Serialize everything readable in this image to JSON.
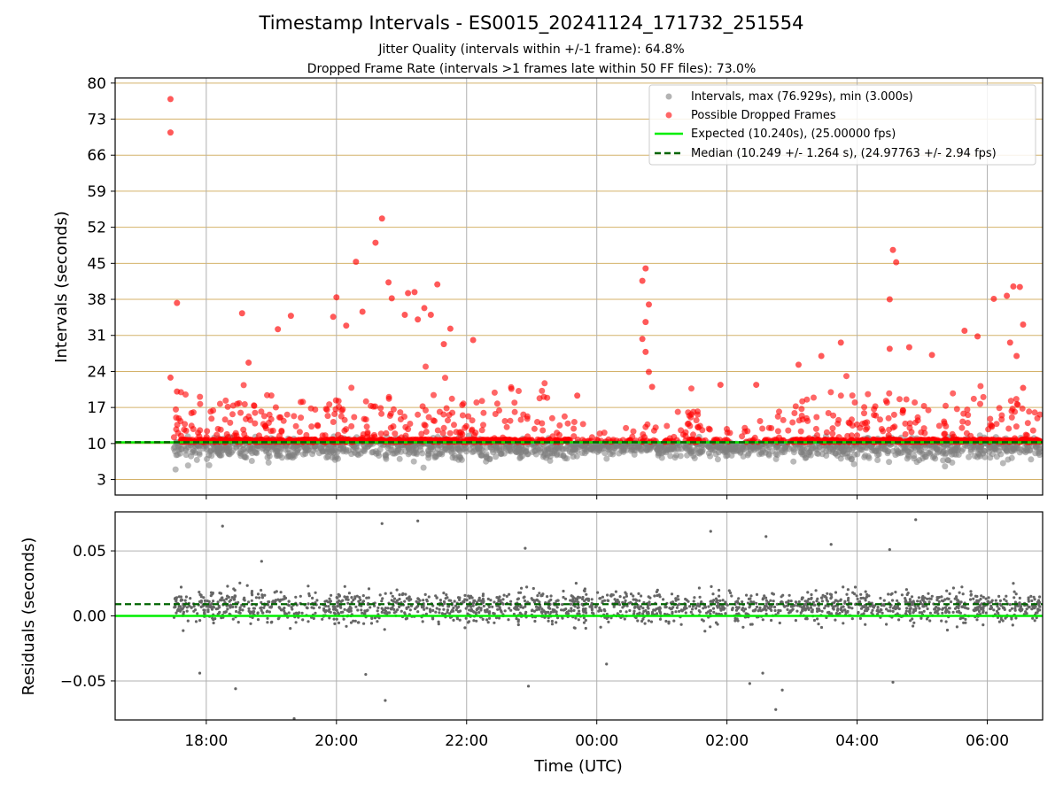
{
  "header": {
    "title": "Timestamp Intervals - ES0015_20241124_171732_251554",
    "subtitle1": "Jitter Quality (intervals within +/-1 frame): 64.8%",
    "subtitle2": "Dropped Frame Rate (intervals >1 frames late within 50 FF files): 73.0%"
  },
  "colors": {
    "intervals": "#808080",
    "dropped": "#ff0000",
    "expected": "#00ee00",
    "median": "#006400",
    "hgrid": "#d4b26a",
    "vgrid": "#b0b0b0"
  },
  "chart_data": [
    {
      "type": "scatter",
      "xlabel": "",
      "ylabel": "Intervals (seconds)",
      "x_ticks": [
        "18:00",
        "20:00",
        "22:00",
        "00:00",
        "02:00",
        "04:00",
        "06:00"
      ],
      "x_range_hours": [
        -1.4,
        12.85
      ],
      "x_start_hours": -0.7,
      "ylim": [
        0,
        81
      ],
      "y_ticks": [
        3,
        10,
        17,
        24,
        31,
        38,
        45,
        52,
        59,
        66,
        73,
        80
      ],
      "grid": "horizontal lines at y ticks, vertical lines at x ticks",
      "legend_position": "top-right",
      "legend": [
        "Intervals, max (76.929s), min (3.000s)",
        "Possible Dropped Frames",
        "Expected (10.240s), (25.00000 fps)",
        "Median (10.249 +/- 1.264 s), (24.97763 +/- 2.94 fps)"
      ],
      "max_interval": 76.929,
      "min_interval": 3.0,
      "expected": 10.24,
      "median": 10.249,
      "dropped_points": [
        {
          "x": -0.55,
          "y": 76.9
        },
        {
          "x": -0.55,
          "y": 70.4
        },
        {
          "x": -0.45,
          "y": 37.3
        },
        {
          "x": -0.55,
          "y": 22.8
        },
        {
          "x": -0.45,
          "y": 20.1
        },
        {
          "x": 0.55,
          "y": 35.3
        },
        {
          "x": 0.65,
          "y": 25.7
        },
        {
          "x": 1.1,
          "y": 32.2
        },
        {
          "x": 1.3,
          "y": 34.8
        },
        {
          "x": 1.95,
          "y": 34.6
        },
        {
          "x": 2.0,
          "y": 38.4
        },
        {
          "x": 2.15,
          "y": 32.9
        },
        {
          "x": 2.3,
          "y": 45.3
        },
        {
          "x": 2.4,
          "y": 35.6
        },
        {
          "x": 2.6,
          "y": 49.0
        },
        {
          "x": 2.7,
          "y": 53.7
        },
        {
          "x": 2.8,
          "y": 41.3
        },
        {
          "x": 2.85,
          "y": 38.2
        },
        {
          "x": 3.05,
          "y": 35.0
        },
        {
          "x": 3.1,
          "y": 39.2
        },
        {
          "x": 3.2,
          "y": 39.4
        },
        {
          "x": 3.25,
          "y": 34.1
        },
        {
          "x": 3.35,
          "y": 36.3
        },
        {
          "x": 3.45,
          "y": 35.0
        },
        {
          "x": 3.55,
          "y": 40.9
        },
        {
          "x": 3.65,
          "y": 29.3
        },
        {
          "x": 3.75,
          "y": 32.3
        },
        {
          "x": 4.1,
          "y": 30.1
        },
        {
          "x": 5.7,
          "y": 19.3
        },
        {
          "x": 6.7,
          "y": 41.6
        },
        {
          "x": 6.75,
          "y": 44.0
        },
        {
          "x": 6.8,
          "y": 37.0
        },
        {
          "x": 6.75,
          "y": 33.6
        },
        {
          "x": 6.7,
          "y": 30.3
        },
        {
          "x": 6.75,
          "y": 27.8
        },
        {
          "x": 6.8,
          "y": 23.9
        },
        {
          "x": 6.85,
          "y": 21.0
        },
        {
          "x": 7.9,
          "y": 21.4
        },
        {
          "x": 8.45,
          "y": 21.4
        },
        {
          "x": 9.1,
          "y": 25.3
        },
        {
          "x": 9.45,
          "y": 27.0
        },
        {
          "x": 9.75,
          "y": 29.6
        },
        {
          "x": 10.5,
          "y": 28.4
        },
        {
          "x": 10.55,
          "y": 47.6
        },
        {
          "x": 10.6,
          "y": 45.2
        },
        {
          "x": 10.5,
          "y": 38.0
        },
        {
          "x": 10.8,
          "y": 28.7
        },
        {
          "x": 11.15,
          "y": 27.2
        },
        {
          "x": 11.65,
          "y": 31.9
        },
        {
          "x": 11.85,
          "y": 30.8
        },
        {
          "x": 12.1,
          "y": 38.1
        },
        {
          "x": 12.3,
          "y": 38.7
        },
        {
          "x": 12.4,
          "y": 40.5
        },
        {
          "x": 12.5,
          "y": 40.4
        },
        {
          "x": 12.55,
          "y": 33.1
        },
        {
          "x": 12.35,
          "y": 29.6
        },
        {
          "x": 12.45,
          "y": 27.0
        },
        {
          "x": 12.55,
          "y": 20.8
        }
      ]
    },
    {
      "type": "scatter",
      "xlabel": "Time (UTC)",
      "ylabel": "Residuals (seconds)",
      "x_ticks": [
        "18:00",
        "20:00",
        "22:00",
        "00:00",
        "02:00",
        "04:00",
        "06:00"
      ],
      "y_ticks": [
        "0.05",
        "0.00",
        "−0.05"
      ],
      "y_tick_values": [
        0.05,
        0.0,
        -0.05
      ],
      "ylim": [
        -0.08,
        0.08
      ],
      "grid": "horizontal lines at y ticks, vertical lines at x ticks",
      "expected_residual": 0.0,
      "median_residual": 0.009,
      "outlier_points": [
        {
          "x": 0.25,
          "y": 0.069
        },
        {
          "x": 0.85,
          "y": 0.042
        },
        {
          "x": 2.7,
          "y": 0.071
        },
        {
          "x": 3.25,
          "y": 0.073
        },
        {
          "x": 4.9,
          "y": 0.052
        },
        {
          "x": 7.75,
          "y": 0.065
        },
        {
          "x": 8.6,
          "y": 0.061
        },
        {
          "x": 9.6,
          "y": 0.055
        },
        {
          "x": 10.5,
          "y": 0.051
        },
        {
          "x": 10.9,
          "y": 0.074
        },
        {
          "x": 12.4,
          "y": 0.025
        },
        {
          "x": -0.1,
          "y": -0.044
        },
        {
          "x": 0.45,
          "y": -0.056
        },
        {
          "x": 1.35,
          "y": -0.079
        },
        {
          "x": 2.45,
          "y": -0.045
        },
        {
          "x": 2.75,
          "y": -0.065
        },
        {
          "x": 4.95,
          "y": -0.054
        },
        {
          "x": 6.15,
          "y": -0.037
        },
        {
          "x": 8.35,
          "y": -0.052
        },
        {
          "x": 8.55,
          "y": -0.044
        },
        {
          "x": 8.75,
          "y": -0.072
        },
        {
          "x": 8.85,
          "y": -0.057
        },
        {
          "x": 10.55,
          "y": -0.051
        }
      ]
    }
  ]
}
